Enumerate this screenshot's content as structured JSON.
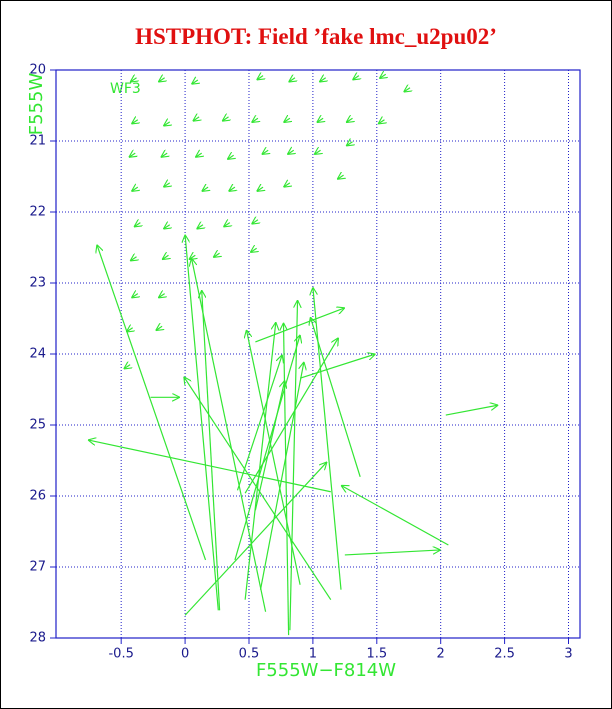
{
  "chart_data": {
    "type": "quiver",
    "title": "HSTPHOT: Field ’fake lmc_u2pu02’",
    "x_label": "F555W−F814W",
    "y_label": "F555W",
    "annotation": "WF3",
    "color": "#33e633",
    "grid": true,
    "y_inverted": true,
    "xlim": [
      -1.01,
      3.09
    ],
    "ylim": [
      20,
      28
    ],
    "xticks": [
      -0.5,
      0,
      0.5,
      1,
      1.5,
      2,
      2.5,
      3
    ],
    "yticks": [
      20,
      21,
      22,
      23,
      24,
      25,
      26,
      27,
      28
    ],
    "x": [
      -0.16,
      -0.38,
      0.1,
      0.61,
      0.86,
      1.1,
      1.36,
      1.57,
      1.76,
      -0.37,
      -0.12,
      0.11,
      0.34,
      0.57,
      0.82,
      1.08,
      1.31,
      1.56,
      -0.39,
      -0.14,
      0.13,
      0.38,
      0.65,
      0.85,
      1.06,
      1.31,
      -0.37,
      -0.12,
      0.18,
      0.39,
      0.61,
      0.82,
      1.24,
      -0.35,
      -0.12,
      0.14,
      0.35,
      0.57,
      -0.38,
      -0.13,
      0.08,
      0.27,
      0.56,
      -0.37,
      -0.16,
      -0.41,
      -0.18,
      -0.43,
      0.16,
      1.14,
      0.26,
      0.63,
      0.27,
      1.14,
      -0.27,
      0.9,
      0.47,
      0.81,
      0.82,
      0.39,
      1.37,
      1.22,
      0.55,
      0.9,
      0.47,
      0.0,
      2.06,
      1.25,
      2.04,
      0.41,
      0.59,
      0.55
    ],
    "y": [
      20.11,
      20.11,
      20.14,
      20.08,
      20.11,
      20.11,
      20.08,
      20.06,
      20.25,
      20.7,
      20.73,
      20.66,
      20.66,
      20.68,
      20.68,
      20.68,
      20.68,
      20.7,
      21.17,
      21.17,
      21.17,
      21.2,
      21.13,
      21.13,
      21.13,
      21.01,
      21.65,
      21.59,
      21.65,
      21.65,
      21.65,
      21.59,
      21.48,
      22.15,
      22.18,
      22.18,
      22.15,
      22.11,
      22.63,
      22.61,
      22.61,
      22.58,
      22.51,
      23.15,
      23.15,
      23.63,
      23.61,
      24.15,
      26.9,
      25.94,
      27.61,
      27.63,
      27.61,
      27.46,
      24.61,
      27.25,
      27.46,
      27.96,
      27.89,
      26.9,
      25.73,
      27.32,
      23.83,
      24.34,
      25.96,
      27.68,
      26.69,
      26.83,
      24.86,
      25.92,
      27.32,
      26.2
    ],
    "x_end": [
      -0.21,
      -0.43,
      0.05,
      0.56,
      0.81,
      1.05,
      1.31,
      1.52,
      1.71,
      -0.42,
      -0.17,
      0.06,
      0.29,
      0.52,
      0.77,
      1.03,
      1.26,
      1.51,
      -0.44,
      -0.19,
      0.08,
      0.33,
      0.6,
      0.8,
      1.01,
      1.26,
      -0.42,
      -0.17,
      0.13,
      0.34,
      0.56,
      0.77,
      1.19,
      -0.4,
      -0.17,
      0.09,
      0.3,
      0.52,
      -0.43,
      -0.18,
      0.03,
      0.22,
      0.51,
      -0.42,
      -0.21,
      -0.46,
      -0.23,
      -0.48,
      -0.69,
      -0.76,
      0.0,
      0.05,
      0.13,
      -0.01,
      -0.04,
      0.48,
      0.71,
      0.77,
      0.88,
      0.9,
      0.98,
      1.0,
      1.25,
      1.49,
      1.2,
      1.11,
      1.22,
      2.0,
      2.45,
      0.76,
      0.93,
      0.78
    ],
    "y_end": [
      20.17,
      20.17,
      20.2,
      20.14,
      20.17,
      20.17,
      20.14,
      20.12,
      20.31,
      20.76,
      20.79,
      20.72,
      20.72,
      20.74,
      20.74,
      20.74,
      20.74,
      20.76,
      21.23,
      21.23,
      21.23,
      21.26,
      21.19,
      21.19,
      21.19,
      21.07,
      21.71,
      21.65,
      21.71,
      21.71,
      21.71,
      21.65,
      21.54,
      22.21,
      22.24,
      22.24,
      22.21,
      22.17,
      22.69,
      22.67,
      22.67,
      22.64,
      22.57,
      23.21,
      23.21,
      23.69,
      23.67,
      24.21,
      22.46,
      25.21,
      22.32,
      22.65,
      23.1,
      24.32,
      24.61,
      23.66,
      23.55,
      23.56,
      23.24,
      23.73,
      23.48,
      23.06,
      23.35,
      24.0,
      23.77,
      25.52,
      25.85,
      26.76,
      24.72,
      24.01,
      24.11,
      24.37
    ]
  }
}
